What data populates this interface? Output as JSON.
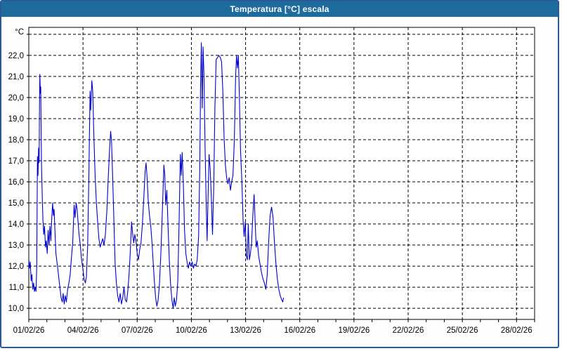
{
  "window": {
    "title": "Temperatura [°C] escala"
  },
  "colors": {
    "titlebar_bg": "#1e6b9d",
    "titlebar_text": "#ffffff",
    "window_border": "#2a5a96",
    "plot_bg": "#ffffff",
    "plot_frame": "#000000",
    "grid": "#000000",
    "tick_text": "#000000",
    "line": "#0000cc"
  },
  "chart_data": {
    "type": "line",
    "title": "Temperatura [°C] escala",
    "xlabel": "",
    "ylabel": "°C",
    "y_unit_label": "°C",
    "grid": "dashed",
    "legend_position": "none",
    "xlim_days": [
      1,
      29.0
    ],
    "ylim": [
      9.47,
      23.33
    ],
    "x_minor_tick_interval_days": 1,
    "x_gridline_days": [
      4,
      7,
      10,
      13,
      16,
      19,
      22,
      25,
      28
    ],
    "x_ticks": [
      {
        "day": 1,
        "label": "01/02/26"
      },
      {
        "day": 4,
        "label": "04/02/26"
      },
      {
        "day": 7,
        "label": "07/02/26"
      },
      {
        "day": 10,
        "label": "10/02/26"
      },
      {
        "day": 13,
        "label": "13/02/26"
      },
      {
        "day": 16,
        "label": "16/02/26"
      },
      {
        "day": 19,
        "label": "19/02/26"
      },
      {
        "day": 22,
        "label": "22/02/26"
      },
      {
        "day": 25,
        "label": "25/02/26"
      },
      {
        "day": 28,
        "label": "28/02/26"
      }
    ],
    "y_gridline_values": [
      10,
      11,
      12,
      13,
      14,
      15,
      16,
      17,
      18,
      19,
      20,
      21,
      22,
      23
    ],
    "y_ticks": [
      {
        "value": 22,
        "label": "22,0"
      },
      {
        "value": 21,
        "label": "21,0"
      },
      {
        "value": 20,
        "label": "20,0"
      },
      {
        "value": 19,
        "label": "19,0"
      },
      {
        "value": 18,
        "label": "18,0"
      },
      {
        "value": 17,
        "label": "17,0"
      },
      {
        "value": 16,
        "label": "16,0"
      },
      {
        "value": 15,
        "label": "15,0"
      },
      {
        "value": 14,
        "label": "14,0"
      },
      {
        "value": 13,
        "label": "13,0"
      },
      {
        "value": 12,
        "label": "12,0"
      },
      {
        "value": 11,
        "label": "11,0"
      },
      {
        "value": 10,
        "label": "10,0"
      }
    ],
    "series": [
      {
        "name": "Temperatura [°C]",
        "color": "#0000cc",
        "points": [
          [
            1.0,
            12.3
          ],
          [
            1.04,
            11.9
          ],
          [
            1.08,
            12.2
          ],
          [
            1.13,
            11.3
          ],
          [
            1.17,
            11.6
          ],
          [
            1.22,
            10.9
          ],
          [
            1.27,
            11.2
          ],
          [
            1.31,
            10.8
          ],
          [
            1.36,
            11.0
          ],
          [
            1.4,
            10.8
          ],
          [
            1.44,
            12.0
          ],
          [
            1.48,
            17.2
          ],
          [
            1.51,
            16.3
          ],
          [
            1.54,
            17.6
          ],
          [
            1.57,
            16.9
          ],
          [
            1.59,
            19.5
          ],
          [
            1.61,
            21.1
          ],
          [
            1.64,
            20.2
          ],
          [
            1.66,
            20.5
          ],
          [
            1.7,
            17.0
          ],
          [
            1.74,
            15.5
          ],
          [
            1.78,
            14.2
          ],
          [
            1.83,
            13.5
          ],
          [
            1.87,
            13.9
          ],
          [
            1.92,
            12.9
          ],
          [
            1.97,
            13.2
          ],
          [
            2.02,
            12.6
          ],
          [
            2.07,
            13.7
          ],
          [
            2.12,
            13.0
          ],
          [
            2.17,
            13.9
          ],
          [
            2.22,
            13.2
          ],
          [
            2.27,
            14.3
          ],
          [
            2.32,
            15.0
          ],
          [
            2.36,
            14.4
          ],
          [
            2.4,
            14.7
          ],
          [
            2.45,
            13.6
          ],
          [
            2.5,
            12.6
          ],
          [
            2.57,
            12.1
          ],
          [
            2.64,
            11.6
          ],
          [
            2.72,
            11.0
          ],
          [
            2.79,
            10.5
          ],
          [
            2.85,
            10.3
          ],
          [
            2.9,
            10.7
          ],
          [
            2.96,
            10.2
          ],
          [
            3.02,
            10.6
          ],
          [
            3.08,
            10.3
          ],
          [
            3.15,
            10.9
          ],
          [
            3.22,
            11.2
          ],
          [
            3.29,
            11.6
          ],
          [
            3.36,
            12.4
          ],
          [
            3.43,
            13.1
          ],
          [
            3.51,
            14.9
          ],
          [
            3.56,
            14.3
          ],
          [
            3.62,
            15.0
          ],
          [
            3.67,
            14.7
          ],
          [
            3.72,
            14.2
          ],
          [
            3.78,
            13.5
          ],
          [
            3.85,
            13.0
          ],
          [
            3.92,
            12.3
          ],
          [
            3.99,
            11.9
          ],
          [
            4.06,
            11.4
          ],
          [
            4.13,
            11.2
          ],
          [
            4.19,
            11.5
          ],
          [
            4.26,
            13.0
          ],
          [
            4.33,
            16.5
          ],
          [
            4.39,
            20.3
          ],
          [
            4.43,
            19.4
          ],
          [
            4.49,
            20.8
          ],
          [
            4.54,
            20.3
          ],
          [
            4.6,
            18.2
          ],
          [
            4.67,
            16.3
          ],
          [
            4.74,
            15.0
          ],
          [
            4.81,
            14.1
          ],
          [
            4.88,
            13.3
          ],
          [
            4.95,
            12.9
          ],
          [
            5.02,
            13.1
          ],
          [
            5.09,
            13.3
          ],
          [
            5.16,
            13.0
          ],
          [
            5.24,
            13.5
          ],
          [
            5.32,
            14.6
          ],
          [
            5.4,
            16.2
          ],
          [
            5.47,
            17.5
          ],
          [
            5.53,
            18.4
          ],
          [
            5.58,
            17.9
          ],
          [
            5.64,
            16.3
          ],
          [
            5.71,
            14.2
          ],
          [
            5.78,
            12.1
          ],
          [
            5.85,
            11.2
          ],
          [
            5.92,
            10.6
          ],
          [
            5.99,
            10.3
          ],
          [
            6.06,
            10.7
          ],
          [
            6.13,
            10.2
          ],
          [
            6.2,
            10.5
          ],
          [
            6.27,
            11.0
          ],
          [
            6.34,
            10.4
          ],
          [
            6.41,
            10.3
          ],
          [
            6.48,
            10.8
          ],
          [
            6.55,
            11.6
          ],
          [
            6.62,
            12.7
          ],
          [
            6.69,
            14.1
          ],
          [
            6.75,
            13.5
          ],
          [
            6.81,
            13.1
          ],
          [
            6.87,
            13.5
          ],
          [
            6.93,
            13.2
          ],
          [
            7.0,
            12.6
          ],
          [
            7.07,
            12.3
          ],
          [
            7.14,
            12.8
          ],
          [
            7.21,
            13.1
          ],
          [
            7.29,
            14.0
          ],
          [
            7.37,
            15.3
          ],
          [
            7.44,
            16.5
          ],
          [
            7.49,
            16.9
          ],
          [
            7.55,
            16.2
          ],
          [
            7.61,
            15.1
          ],
          [
            7.68,
            14.4
          ],
          [
            7.75,
            13.9
          ],
          [
            7.82,
            13.1
          ],
          [
            7.89,
            12.1
          ],
          [
            7.95,
            11.3
          ],
          [
            8.02,
            10.5
          ],
          [
            8.09,
            10.1
          ],
          [
            8.16,
            10.4
          ],
          [
            8.23,
            11.1
          ],
          [
            8.31,
            12.6
          ],
          [
            8.4,
            14.8
          ],
          [
            8.48,
            16.8
          ],
          [
            8.53,
            16.3
          ],
          [
            8.58,
            14.9
          ],
          [
            8.64,
            15.6
          ],
          [
            8.71,
            13.8
          ],
          [
            8.78,
            12.2
          ],
          [
            8.85,
            11.1
          ],
          [
            8.92,
            10.4
          ],
          [
            8.99,
            10.0
          ],
          [
            9.05,
            10.5
          ],
          [
            9.11,
            10.1
          ],
          [
            9.18,
            10.4
          ],
          [
            9.25,
            11.3
          ],
          [
            9.32,
            14.0
          ],
          [
            9.39,
            17.3
          ],
          [
            9.44,
            16.3
          ],
          [
            9.49,
            17.4
          ],
          [
            9.55,
            16.0
          ],
          [
            9.62,
            13.7
          ],
          [
            9.69,
            12.6
          ],
          [
            9.76,
            12.2
          ],
          [
            9.83,
            11.9
          ],
          [
            9.9,
            12.2
          ],
          [
            9.97,
            12.0
          ],
          [
            10.04,
            12.2
          ],
          [
            10.11,
            11.9
          ],
          [
            10.18,
            12.1
          ],
          [
            10.25,
            12.0
          ],
          [
            10.32,
            12.3
          ],
          [
            10.4,
            13.4
          ],
          [
            10.46,
            16.5
          ],
          [
            10.51,
            20.5
          ],
          [
            10.55,
            22.6
          ],
          [
            10.6,
            19.5
          ],
          [
            10.65,
            22.4
          ],
          [
            10.7,
            21.0
          ],
          [
            10.76,
            17.5
          ],
          [
            10.82,
            15.0
          ],
          [
            10.87,
            13.2
          ],
          [
            10.92,
            15.2
          ],
          [
            10.98,
            17.3
          ],
          [
            11.04,
            16.6
          ],
          [
            11.1,
            15.4
          ],
          [
            11.17,
            13.5
          ],
          [
            11.24,
            15.8
          ],
          [
            11.3,
            19.5
          ],
          [
            11.37,
            21.8
          ],
          [
            11.45,
            21.9
          ],
          [
            11.52,
            22.0
          ],
          [
            11.6,
            21.9
          ],
          [
            11.67,
            21.7
          ],
          [
            11.74,
            20.3
          ],
          [
            11.81,
            18.1
          ],
          [
            11.88,
            16.8
          ],
          [
            11.95,
            16.2
          ],
          [
            12.02,
            15.9
          ],
          [
            12.09,
            16.2
          ],
          [
            12.16,
            15.6
          ],
          [
            12.23,
            16.0
          ],
          [
            12.3,
            16.3
          ],
          [
            12.38,
            18.0
          ],
          [
            12.45,
            21.0
          ],
          [
            12.5,
            22.0
          ],
          [
            12.55,
            21.4
          ],
          [
            12.6,
            22.0
          ],
          [
            12.66,
            20.0
          ],
          [
            12.72,
            17.5
          ],
          [
            12.79,
            16.1
          ],
          [
            12.86,
            14.2
          ],
          [
            12.92,
            13.4
          ],
          [
            12.98,
            14.1
          ],
          [
            13.04,
            12.5
          ],
          [
            13.1,
            12.3
          ],
          [
            13.15,
            14.0
          ],
          [
            13.21,
            12.3
          ],
          [
            13.27,
            12.6
          ],
          [
            13.33,
            13.1
          ],
          [
            13.4,
            14.4
          ],
          [
            13.47,
            15.4
          ],
          [
            13.53,
            14.1
          ],
          [
            13.59,
            12.9
          ],
          [
            13.65,
            13.2
          ],
          [
            13.72,
            12.5
          ],
          [
            13.8,
            12.1
          ],
          [
            13.88,
            11.7
          ],
          [
            13.96,
            11.4
          ],
          [
            14.04,
            11.2
          ],
          [
            14.12,
            10.9
          ],
          [
            14.2,
            11.6
          ],
          [
            14.28,
            13.2
          ],
          [
            14.36,
            14.4
          ],
          [
            14.44,
            14.8
          ],
          [
            14.52,
            14.3
          ],
          [
            14.6,
            13.1
          ],
          [
            14.68,
            12.1
          ],
          [
            14.76,
            11.4
          ],
          [
            14.84,
            10.9
          ],
          [
            14.92,
            10.6
          ],
          [
            15.0,
            10.4
          ],
          [
            15.06,
            10.3
          ],
          [
            15.1,
            10.5
          ]
        ]
      }
    ]
  }
}
